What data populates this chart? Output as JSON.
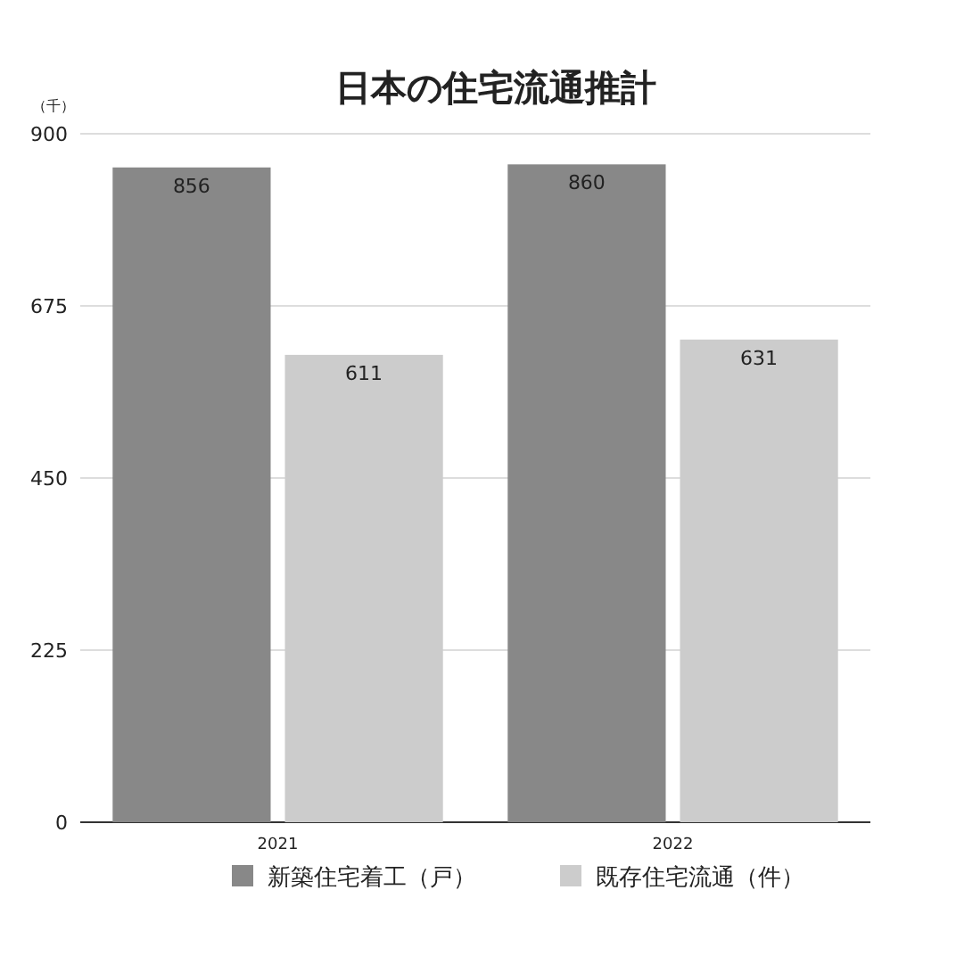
{
  "chart_data": {
    "type": "bar",
    "title": "日本の住宅流通推計",
    "ylabel": "（千）",
    "categories": [
      "2021",
      "2022"
    ],
    "series": [
      {
        "name": "新築住宅着工（戸）",
        "color": "#888888",
        "values": [
          856,
          860
        ]
      },
      {
        "name": "既存住宅流通（件）",
        "color": "#cccccc",
        "values": [
          611,
          631
        ]
      }
    ],
    "ylim": [
      0,
      900
    ],
    "yticks": [
      0,
      225,
      450,
      675,
      900
    ],
    "grid": "y",
    "legend": "bottom",
    "data_labels": true
  }
}
